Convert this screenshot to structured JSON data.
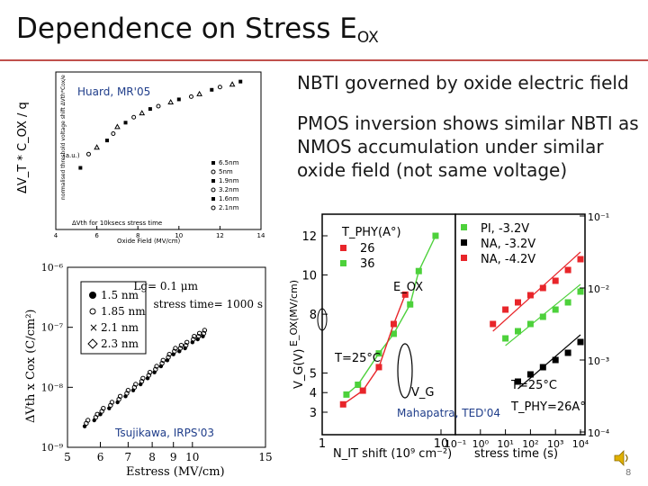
{
  "slide": {
    "title": "Dependence on Stress E",
    "title_sub": "OX",
    "bullet1": "NBTI governed by oxide electric field",
    "bullet2": "PMOS inversion shows similar NBTI as NMOS accumulation under similar oxide field (not same voltage)",
    "page_number": "8"
  },
  "colors": {
    "accent_rule": "#c0504d",
    "cite": "#1f3d8a",
    "red": "#e8252a",
    "green": "#4dd13b",
    "black": "#000000"
  },
  "chart_data": [
    {
      "id": "top-left",
      "type": "scatter",
      "citation": "Huard, MR'05",
      "ylabel": "ΔV_T * C_OX / q",
      "xlabel": "Oxide Field (MV/cm)",
      "x_ticks": [
        "4",
        "6",
        "8",
        "10",
        "12",
        "14"
      ],
      "xlim": [
        4,
        14
      ],
      "legend": [
        "6.5nm",
        "5nm",
        "1.9nm",
        "3.2nm",
        "1.6nm",
        "2.1nm"
      ],
      "note": "ΔVth for 10ksecs stress time",
      "inner_ylabel": "normalised threshold voltage shift ΔVth*Cox/e",
      "unit": "(a.u.)",
      "points": [
        [
          5.2,
          0.45
        ],
        [
          5.6,
          0.55
        ],
        [
          6.0,
          0.6
        ],
        [
          6.5,
          0.65
        ],
        [
          6.8,
          0.7
        ],
        [
          7.0,
          0.75
        ],
        [
          7.4,
          0.78
        ],
        [
          7.8,
          0.82
        ],
        [
          8.2,
          0.85
        ],
        [
          8.6,
          0.88
        ],
        [
          9.0,
          0.9
        ],
        [
          9.6,
          0.93
        ],
        [
          10.0,
          0.95
        ],
        [
          10.6,
          0.97
        ],
        [
          11.0,
          0.99
        ],
        [
          11.6,
          1.02
        ],
        [
          12.0,
          1.04
        ],
        [
          12.6,
          1.06
        ],
        [
          13.0,
          1.08
        ]
      ]
    },
    {
      "id": "bottom-left",
      "type": "scatter",
      "citation": "Tsujikawa, IRPS'03",
      "ylabel": "ΔVth x Cox (C/cm²)",
      "xlabel": "Estress (MV/cm)",
      "x_ticks": [
        "5",
        "6",
        "7",
        "8",
        "9",
        "10",
        "15"
      ],
      "y_ticks": [
        "10⁻⁶",
        "10⁻⁷",
        "10⁻⁸",
        "10⁻⁹"
      ],
      "xlim": [
        5,
        15
      ],
      "ylim_log10": [
        -9,
        -6
      ],
      "legend": [
        "1.5 nm",
        "1.85 nm",
        "2.1 nm",
        "2.3 nm"
      ],
      "annotation1": "Lg= 0.1 μm",
      "annotation2": "stress time= 1000 s",
      "points": [
        [
          5.5,
          -8.6
        ],
        [
          5.8,
          -8.5
        ],
        [
          6.0,
          -8.4
        ],
        [
          6.3,
          -8.3
        ],
        [
          6.6,
          -8.2
        ],
        [
          6.9,
          -8.1
        ],
        [
          7.2,
          -8.0
        ],
        [
          7.5,
          -7.9
        ],
        [
          7.8,
          -7.8
        ],
        [
          8.1,
          -7.7
        ],
        [
          8.4,
          -7.6
        ],
        [
          8.7,
          -7.5
        ],
        [
          9.0,
          -7.4
        ],
        [
          9.3,
          -7.35
        ],
        [
          9.6,
          -7.3
        ],
        [
          10.0,
          -7.2
        ],
        [
          10.3,
          -7.15
        ],
        [
          10.6,
          -7.1
        ]
      ]
    },
    {
      "id": "right-main",
      "type": "scatter",
      "citation": "Mahapatra, TED'04",
      "ylabel": "V_G(V)",
      "ylabel_alt": "E_OX(MV/cm)",
      "xlabel": "N_IT shift (10⁹ cm⁻²)",
      "x_ticks": [
        "1",
        "10"
      ],
      "y_ticks": [
        "12",
        "10",
        "8",
        "5",
        "4",
        "3"
      ],
      "legend_tphy": "T_PHY(A°)",
      "legend_tphy_items": [
        {
          "label": "26",
          "color": "#e8252a"
        },
        {
          "label": "36",
          "color": "#4dd13b"
        }
      ],
      "legend_series": [
        {
          "label": "PI, -3.2V",
          "color": "#4dd13b"
        },
        {
          "label": "NA, -3.2V",
          "color": "#000000"
        },
        {
          "label": "NA, -4.2V",
          "color": "#e8252a"
        }
      ],
      "label_eox": "E_OX",
      "label_vg": "V_G",
      "temp": "T=25°C",
      "series": [
        {
          "name": "36",
          "color": "#4dd13b",
          "values": [
            [
              1.6,
              3.9
            ],
            [
              2.0,
              4.4
            ],
            [
              3.0,
              6.0
            ],
            [
              4.0,
              7.0
            ],
            [
              5.5,
              8.5
            ],
            [
              6.5,
              10.2
            ],
            [
              9.0,
              12.0
            ]
          ]
        },
        {
          "name": "26",
          "color": "#e8252a",
          "values": [
            [
              1.5,
              3.4
            ],
            [
              2.2,
              4.1
            ],
            [
              3.0,
              5.3
            ],
            [
              4.0,
              7.5
            ],
            [
              5.0,
              9.0
            ]
          ]
        }
      ]
    },
    {
      "id": "right-inset",
      "type": "scatter",
      "xlabel": "stress time (s)",
      "x_ticks": [
        "10⁻¹",
        "10⁰",
        "10¹",
        "10²",
        "10³",
        "10⁴"
      ],
      "y_ticks": [
        "10⁻¹",
        "10⁻²",
        "10⁻³",
        "10⁻⁴"
      ],
      "temp": "T=25°C",
      "tphy": "T_PHY=26A°",
      "series": [
        {
          "name": "PI, -3.2V",
          "color": "#4dd13b",
          "values": [
            [
              1.0,
              -2.7
            ],
            [
              1.5,
              -2.6
            ],
            [
              2.0,
              -2.5
            ],
            [
              2.5,
              -2.4
            ],
            [
              3.0,
              -2.3
            ],
            [
              3.5,
              -2.2
            ],
            [
              4.0,
              -2.05
            ]
          ]
        },
        {
          "name": "NA, -3.2V",
          "color": "#000000",
          "values": [
            [
              1.5,
              -3.3
            ],
            [
              2.0,
              -3.2
            ],
            [
              2.5,
              -3.1
            ],
            [
              3.0,
              -3.0
            ],
            [
              3.5,
              -2.9
            ],
            [
              4.0,
              -2.75
            ]
          ]
        },
        {
          "name": "NA, -4.2V",
          "color": "#e8252a",
          "values": [
            [
              0.5,
              -2.5
            ],
            [
              1.0,
              -2.3
            ],
            [
              1.5,
              -2.2
            ],
            [
              2.0,
              -2.1
            ],
            [
              2.5,
              -2.0
            ],
            [
              3.0,
              -1.9
            ],
            [
              3.5,
              -1.75
            ],
            [
              4.0,
              -1.6
            ]
          ]
        }
      ]
    }
  ]
}
